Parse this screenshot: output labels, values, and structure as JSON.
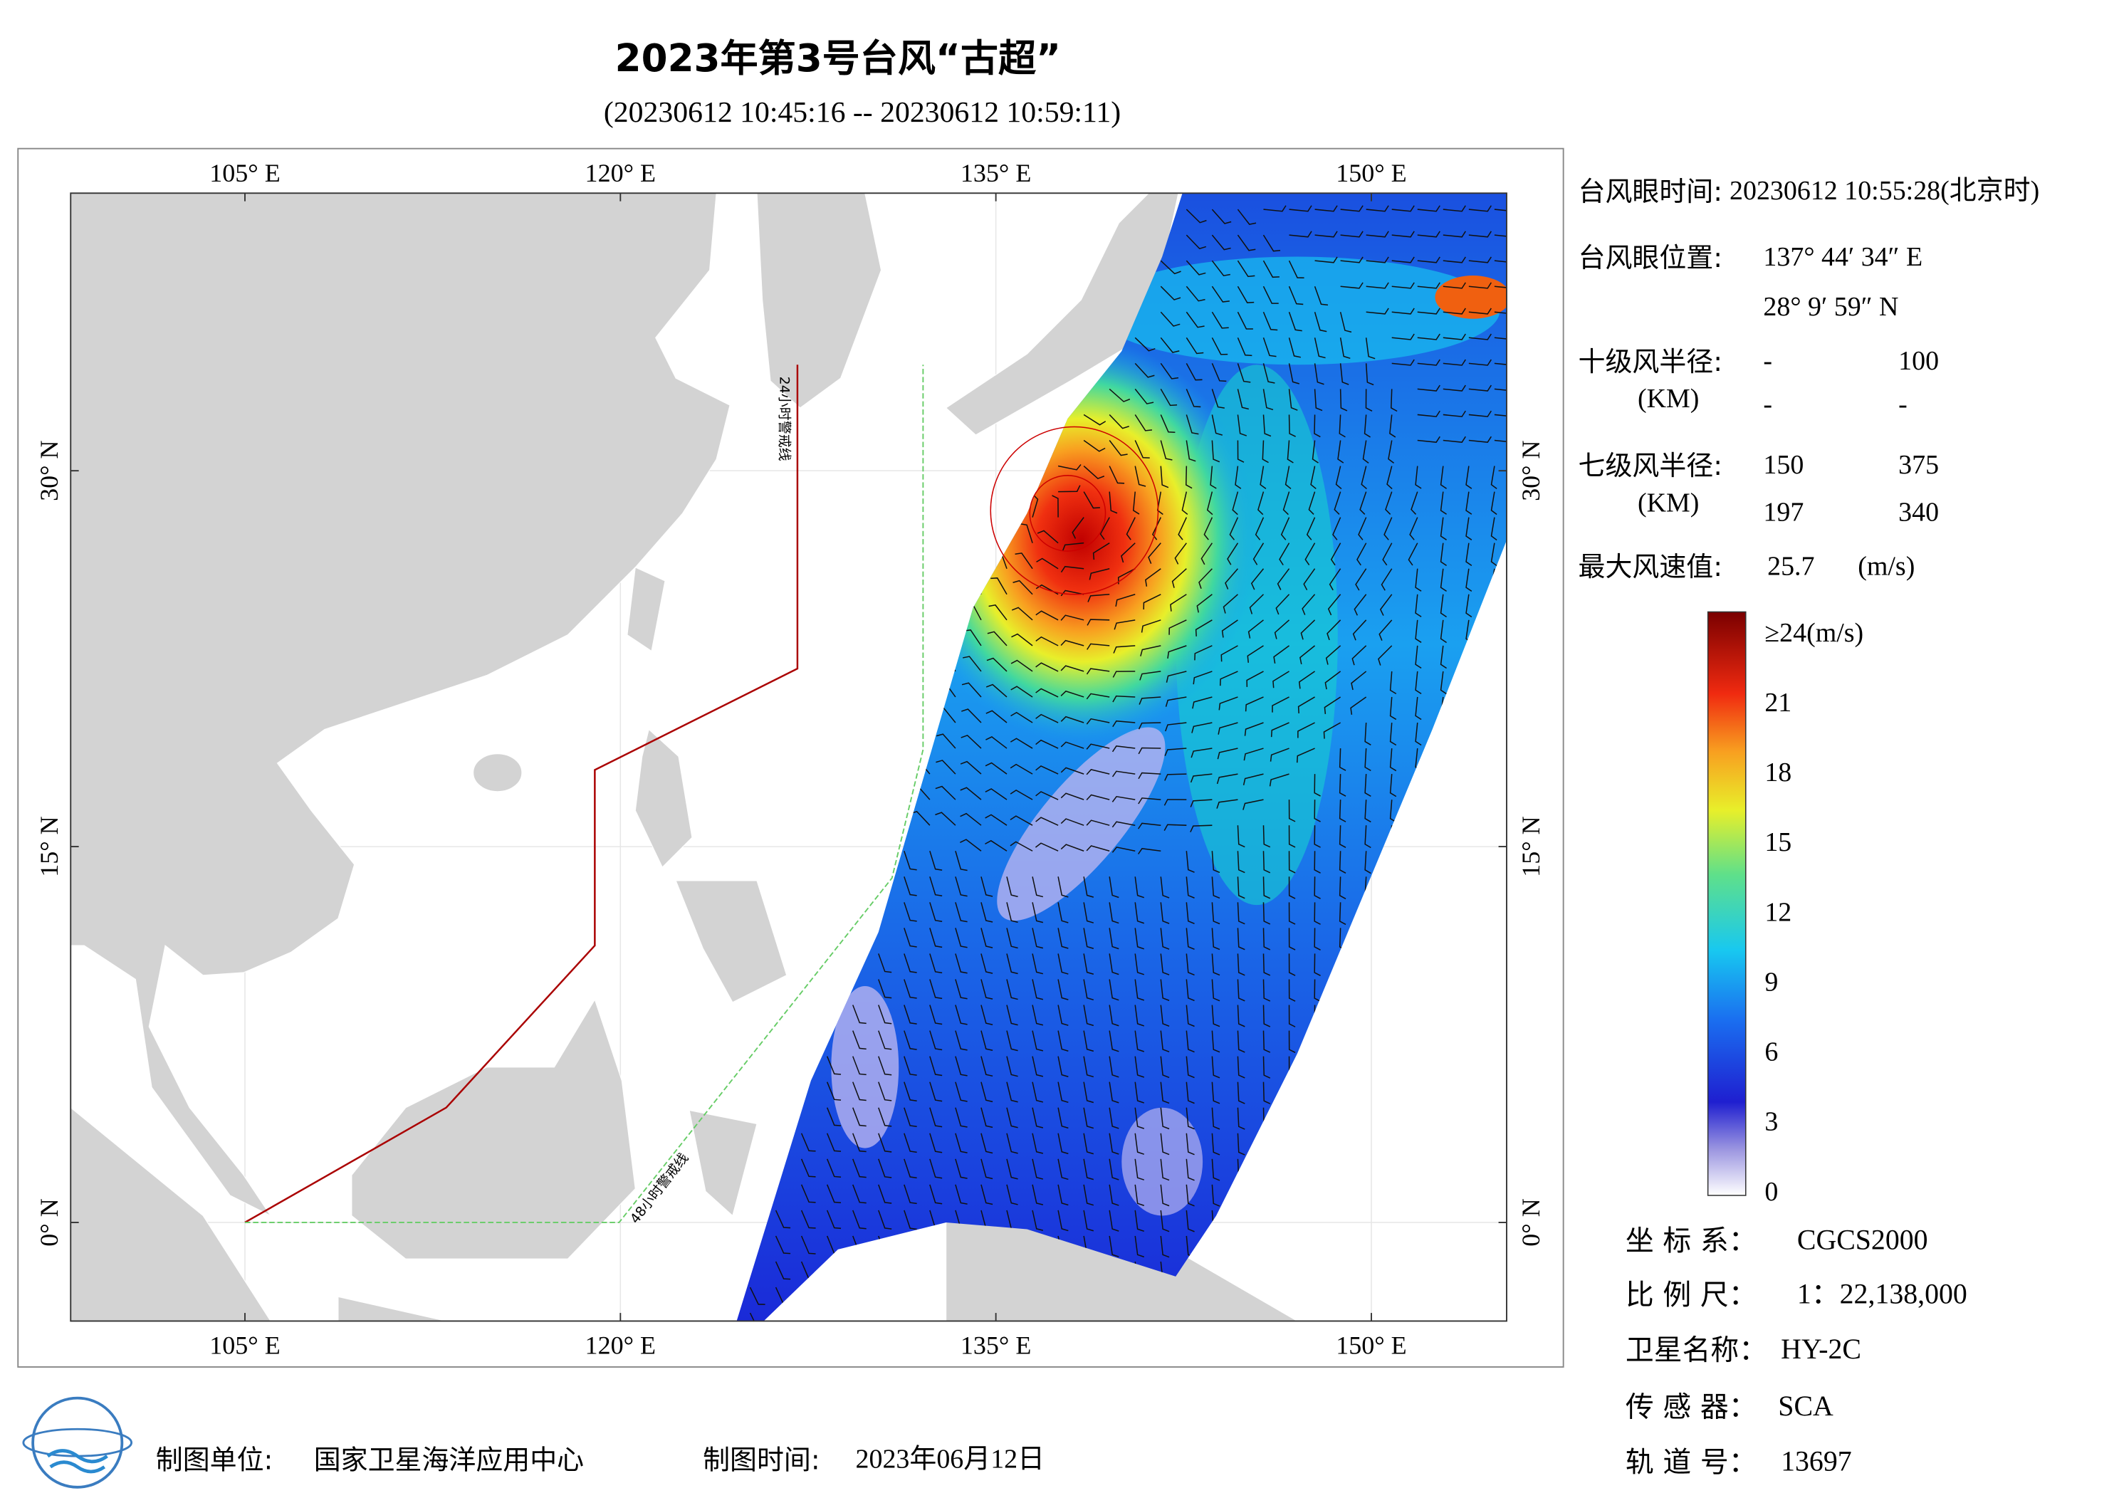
{
  "title": "2023年第3号台风“古超”",
  "subtitle": "(20230612 10:45:16 -- 20230612 10:59:11)",
  "map": {
    "lon_ticks": [
      {
        "value": 105,
        "label": "105° E"
      },
      {
        "value": 120,
        "label": "120° E"
      },
      {
        "value": 135,
        "label": "135° E"
      },
      {
        "value": 150,
        "label": "150° E"
      }
    ],
    "lat_ticks": [
      {
        "value": 0,
        "label": "0° N"
      },
      {
        "value": 15,
        "label": "15° N"
      },
      {
        "value": 30,
        "label": "30° N"
      }
    ],
    "warning_24h": "24小时警戒线",
    "warning_48h": "48小时警戒线"
  },
  "info": {
    "eye_time_label": "台风眼时间:",
    "eye_time": "20230612 10:55:28(北京时)",
    "eye_position_label": "台风眼位置:",
    "eye_lon": "137° 44′ 34″ E",
    "eye_lat": "28° 9′ 59″ N",
    "r10_label": "十级风半径:",
    "r10_unit": "(KM)",
    "r10_values": [
      "-",
      "100",
      "-",
      "-"
    ],
    "r7_label": "七级风半径:",
    "r7_unit": "(KM)",
    "r7_values": [
      150,
      375,
      197,
      340
    ],
    "max_wind_label": "最大风速值:",
    "max_wind": 25.7,
    "max_wind_unit": "(m/s)"
  },
  "colorbar": {
    "ticks": [
      0,
      3,
      6,
      9,
      12,
      15,
      18,
      21,
      {
        "value": 24,
        "label": "≥24(m/s)"
      }
    ]
  },
  "meta": {
    "crs_label": "坐 标 系：",
    "crs": "CGCS2000",
    "scale_label": "比 例 尺：",
    "scale": "1：22,138,000",
    "satellite_label": "卫星名称：",
    "satellite": "HY-2C",
    "sensor_label": "传 感 器：",
    "sensor": "SCA",
    "orbit_label": "轨 道 号：",
    "orbit": 13697
  },
  "footer": {
    "maker_label": "制图单位:",
    "maker": "国家卫星海洋应用中心",
    "date_label": "制图时间:",
    "date": "2023年06月12日"
  }
}
